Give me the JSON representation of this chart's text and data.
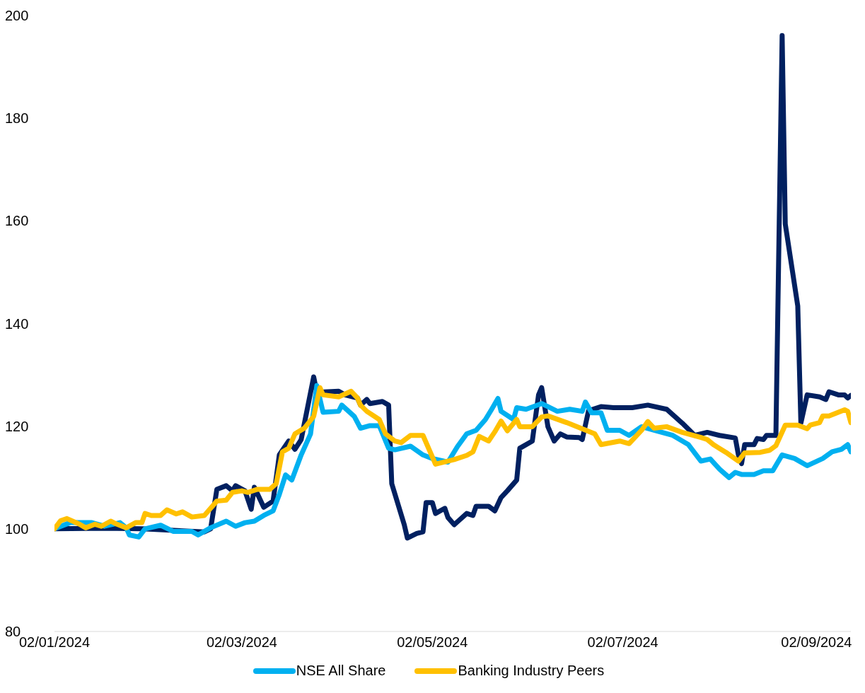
{
  "chart_data": {
    "type": "line",
    "xlim": [
      "2024-01-02",
      "2024-09-13"
    ],
    "xticks": [
      {
        "value": "2024-01-02",
        "label": "02/01/2024"
      },
      {
        "value": "2024-03-02",
        "label": "02/03/2024"
      },
      {
        "value": "2024-05-02",
        "label": "02/05/2024"
      },
      {
        "value": "2024-07-02",
        "label": "02/07/2024"
      },
      {
        "value": "2024-09-02",
        "label": "02/09/2024"
      }
    ],
    "ylim": [
      80,
      200
    ],
    "yticks": [
      80,
      100,
      120,
      140,
      160,
      180,
      200
    ],
    "grid": false,
    "legend": "bottom",
    "marker": "none",
    "line_style": "solid",
    "series": [
      {
        "color": "#002060",
        "x": [
          "2024-01-02",
          "2024-01-18",
          "2024-01-30",
          "2024-02-19",
          "2024-02-21",
          "2024-02-23",
          "2024-02-26",
          "2024-02-28",
          "2024-02-29",
          "2024-03-03",
          "2024-03-05",
          "2024-03-06",
          "2024-03-09",
          "2024-03-12",
          "2024-03-14",
          "2024-03-17",
          "2024-03-19",
          "2024-03-21",
          "2024-03-25",
          "2024-03-26",
          "2024-04-02",
          "2024-04-04",
          "2024-04-08",
          "2024-04-09",
          "2024-04-11",
          "2024-04-12",
          "2024-04-16",
          "2024-04-18",
          "2024-04-19",
          "2024-04-23",
          "2024-04-24",
          "2024-04-27",
          "2024-04-29",
          "2024-04-30",
          "2024-05-02",
          "2024-05-03",
          "2024-05-06",
          "2024-05-07",
          "2024-05-09",
          "2024-05-13",
          "2024-05-15",
          "2024-05-16",
          "2024-05-20",
          "2024-05-22",
          "2024-05-24",
          "2024-05-26",
          "2024-05-29",
          "2024-05-30",
          "2024-06-03",
          "2024-06-05",
          "2024-06-06",
          "2024-06-08",
          "2024-06-10",
          "2024-06-12",
          "2024-06-14",
          "2024-06-18",
          "2024-06-19",
          "2024-06-21",
          "2024-06-25",
          "2024-06-29",
          "2024-07-05",
          "2024-07-10",
          "2024-07-16",
          "2024-07-21",
          "2024-07-25",
          "2024-07-29",
          "2024-08-02",
          "2024-08-07",
          "2024-08-08",
          "2024-08-09",
          "2024-08-10",
          "2024-08-13",
          "2024-08-14",
          "2024-08-16",
          "2024-08-17",
          "2024-08-20",
          "2024-08-22",
          "2024-08-23",
          "2024-08-27",
          "2024-08-28",
          "2024-08-30",
          "2024-09-03",
          "2024-09-05",
          "2024-09-06",
          "2024-09-09",
          "2024-09-11",
          "2024-09-12",
          "2024-09-13"
        ],
        "values": [
          100,
          100.1,
          100,
          99.4,
          100,
          107.7,
          108.4,
          107.4,
          108.4,
          107.4,
          103.8,
          108.1,
          104.2,
          105.4,
          114.4,
          117.1,
          115.5,
          117.4,
          129.6,
          126.6,
          126.8,
          126.1,
          125.5,
          124.1,
          125.2,
          124.4,
          124.8,
          124.1,
          108.8,
          100.8,
          98.2,
          99.1,
          99.4,
          105.1,
          105.1,
          103,
          104,
          102.2,
          100.8,
          103,
          102.6,
          104.4,
          104.4,
          103.5,
          106.1,
          107.4,
          109.5,
          115.7,
          117.1,
          126.1,
          127.5,
          119.9,
          117.1,
          118.5,
          117.9,
          117.8,
          117.4,
          123,
          123.8,
          123.6,
          123.6,
          124.1,
          123.3,
          120.6,
          118.2,
          118.8,
          118.2,
          117.7,
          114.4,
          112.7,
          116.4,
          116.4,
          117.6,
          117.4,
          118.2,
          118.2,
          196.1,
          159.4,
          143.4,
          120.6,
          126.1,
          125.7,
          125.2,
          126.7,
          126.1,
          126.1,
          125.5,
          126
        ]
      },
      {
        "name": "NSE All Share",
        "color": "#00b0f0",
        "x": [
          "2024-01-02",
          "2024-01-07",
          "2024-01-14",
          "2024-01-18",
          "2024-01-23",
          "2024-01-25",
          "2024-01-26",
          "2024-01-29",
          "2024-01-31",
          "2024-02-05",
          "2024-02-09",
          "2024-02-15",
          "2024-02-17",
          "2024-02-21",
          "2024-02-26",
          "2024-02-29",
          "2024-03-03",
          "2024-03-06",
          "2024-03-09",
          "2024-03-12",
          "2024-03-14",
          "2024-03-16",
          "2024-03-18",
          "2024-03-21",
          "2024-03-24",
          "2024-03-26",
          "2024-03-28",
          "2024-04-02",
          "2024-04-03",
          "2024-04-07",
          "2024-04-09",
          "2024-04-12",
          "2024-04-15",
          "2024-04-18",
          "2024-04-20",
          "2024-04-25",
          "2024-04-29",
          "2024-05-02",
          "2024-05-07",
          "2024-05-10",
          "2024-05-13",
          "2024-05-16",
          "2024-05-19",
          "2024-05-21",
          "2024-05-23",
          "2024-05-24",
          "2024-05-28",
          "2024-05-29",
          "2024-06-01",
          "2024-06-06",
          "2024-06-11",
          "2024-06-15",
          "2024-06-19",
          "2024-06-20",
          "2024-06-22",
          "2024-06-25",
          "2024-06-27",
          "2024-07-01",
          "2024-07-04",
          "2024-07-08",
          "2024-07-12",
          "2024-07-18",
          "2024-07-23",
          "2024-07-27",
          "2024-07-30",
          "2024-08-02",
          "2024-08-05",
          "2024-08-07",
          "2024-08-09",
          "2024-08-13",
          "2024-08-16",
          "2024-08-19",
          "2024-08-22",
          "2024-08-26",
          "2024-08-30",
          "2024-09-04",
          "2024-09-07",
          "2024-09-10",
          "2024-09-12",
          "2024-09-13"
        ],
        "values": [
          100,
          101.2,
          101.2,
          100.5,
          101.2,
          100.2,
          98.8,
          98.4,
          100,
          100.7,
          99.5,
          99.5,
          98.8,
          100.2,
          101.5,
          100.5,
          101.2,
          101.5,
          102.6,
          103.5,
          106.7,
          110.5,
          109.5,
          114.4,
          118.5,
          127.9,
          122.7,
          122.9,
          124.1,
          121.9,
          119.6,
          120.1,
          120.1,
          115.7,
          115.4,
          116.1,
          114.4,
          113.7,
          113,
          116,
          118.5,
          119.2,
          121.3,
          123.3,
          125.4,
          122.9,
          121.3,
          123.6,
          123.3,
          124.4,
          122.9,
          123.3,
          122.9,
          124.7,
          122.6,
          122.6,
          119.2,
          119.2,
          118.2,
          119.9,
          119.2,
          118.2,
          116.4,
          113.2,
          113.6,
          111.6,
          110,
          111,
          110.6,
          110.6,
          111.3,
          111.3,
          114.4,
          113.7,
          112.3,
          113.7,
          115,
          115.5,
          116.4,
          115
        ]
      },
      {
        "name": "Banking Industry Peers",
        "color": "#ffc000",
        "x": [
          "2024-01-02",
          "2024-01-04",
          "2024-01-06",
          "2024-01-10",
          "2024-01-12",
          "2024-01-15",
          "2024-01-17",
          "2024-01-20",
          "2024-01-22",
          "2024-01-25",
          "2024-01-28",
          "2024-01-30",
          "2024-01-31",
          "2024-02-02",
          "2024-02-05",
          "2024-02-07",
          "2024-02-10",
          "2024-02-12",
          "2024-02-15",
          "2024-02-19",
          "2024-02-21",
          "2024-02-23",
          "2024-02-26",
          "2024-02-28",
          "2024-03-02",
          "2024-03-04",
          "2024-03-07",
          "2024-03-11",
          "2024-03-13",
          "2024-03-15",
          "2024-03-17",
          "2024-03-19",
          "2024-03-22",
          "2024-03-25",
          "2024-03-27",
          "2024-03-28",
          "2024-04-02",
          "2024-04-06",
          "2024-04-08",
          "2024-04-09",
          "2024-04-11",
          "2024-04-15",
          "2024-04-17",
          "2024-04-20",
          "2024-04-22",
          "2024-04-25",
          "2024-04-29",
          "2024-05-03",
          "2024-05-09",
          "2024-05-13",
          "2024-05-15",
          "2024-05-17",
          "2024-05-20",
          "2024-05-22",
          "2024-05-24",
          "2024-05-26",
          "2024-05-29",
          "2024-05-30",
          "2024-06-03",
          "2024-06-06",
          "2024-06-08",
          "2024-06-14",
          "2024-06-23",
          "2024-06-25",
          "2024-07-01",
          "2024-07-04",
          "2024-07-08",
          "2024-07-10",
          "2024-07-12",
          "2024-07-16",
          "2024-07-21",
          "2024-07-27",
          "2024-07-29",
          "2024-07-31",
          "2024-08-04",
          "2024-08-08",
          "2024-08-10",
          "2024-08-15",
          "2024-08-18",
          "2024-08-20",
          "2024-08-23",
          "2024-08-27",
          "2024-08-30",
          "2024-08-31",
          "2024-09-03",
          "2024-09-04",
          "2024-09-06",
          "2024-09-11",
          "2024-09-12",
          "2024-09-13"
        ],
        "values": [
          100,
          101.6,
          102,
          100.9,
          100.2,
          100.9,
          100.5,
          101.5,
          100.9,
          100.2,
          101.2,
          101.2,
          103,
          102.6,
          102.6,
          103.7,
          102.9,
          103.3,
          102.3,
          102.6,
          104,
          105.4,
          105.6,
          107.1,
          107.4,
          107.1,
          107.7,
          107.7,
          108.8,
          115,
          115.7,
          118.5,
          119.6,
          121.9,
          127.5,
          126.1,
          125.7,
          126.8,
          125.5,
          124.1,
          122.9,
          121.3,
          118.5,
          117.1,
          116.8,
          118.2,
          118.2,
          112.6,
          113.5,
          114.3,
          115,
          118,
          117.1,
          118.9,
          121,
          119.1,
          121.3,
          119.9,
          119.9,
          121.8,
          122,
          120.7,
          118.5,
          116.4,
          117.1,
          116.6,
          119.2,
          120.9,
          119.6,
          119.9,
          118.8,
          117.8,
          117.4,
          116.4,
          114.9,
          113.2,
          114.8,
          114.9,
          115.3,
          116.2,
          120.2,
          120.2,
          119.5,
          120.2,
          120.7,
          122,
          122,
          123.2,
          122.9,
          120.7
        ]
      }
    ]
  }
}
